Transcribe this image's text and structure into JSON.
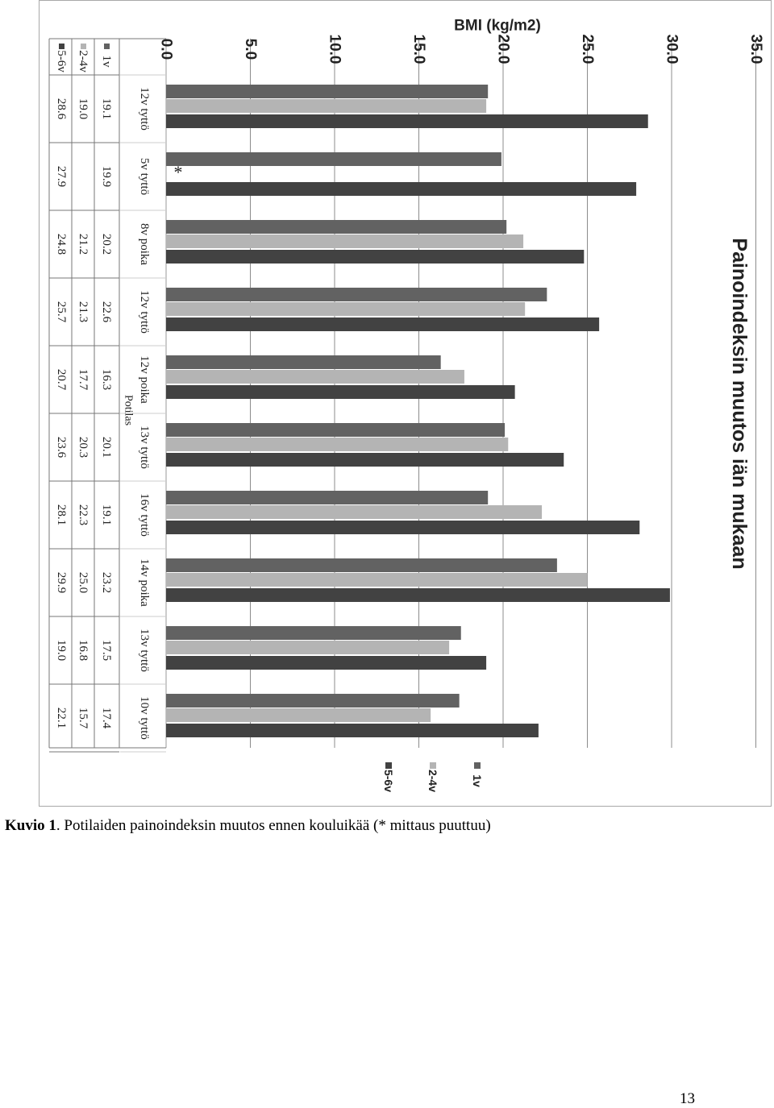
{
  "caption": {
    "label": "Kuvio 1",
    "text": ". Potilaiden painoindeksin muutos ennen kouluikää (* mittaus puuttuu)"
  },
  "page_number": "13",
  "colors": {
    "series_1v": "#626262",
    "series_2_4v": "#b4b4b4",
    "series_5_6v": "#424242",
    "grid": "#8c8c8c",
    "table_line": "#777777",
    "text": "#222222"
  },
  "chart_data": {
    "type": "bar",
    "orientation": "rotated 90 degrees clockwise (page is sideways)",
    "title": "Painoindeksin muutos iän mukaan",
    "ylabel": "BMI (kg/m2)",
    "xlabel": "Potilas",
    "ylim": [
      0,
      35
    ],
    "yticks": [
      "0.0",
      "5.0",
      "10.0",
      "15.0",
      "20.0",
      "25.0",
      "30.0",
      "35.0"
    ],
    "grid": true,
    "legend_position": "right",
    "data_table": true,
    "missing_marker": "*",
    "categories": [
      "12v tyttö",
      "5v tyttö",
      "8v poika",
      "12v tyttö",
      "12v poika",
      "13v tyttö",
      "16v tyttö",
      "14v poika",
      "13v tyttö",
      "10v tyttö"
    ],
    "series": [
      {
        "name": "1v",
        "values": [
          19.1,
          19.9,
          20.2,
          22.6,
          16.3,
          20.1,
          19.1,
          23.2,
          17.5,
          17.4
        ],
        "labels": [
          "19.1",
          "19.9",
          "20.2",
          "22.6",
          "16.3",
          "20.1",
          "19.1",
          "23.2",
          "17.5",
          "17.4"
        ]
      },
      {
        "name": "2-4v",
        "values": [
          19.0,
          null,
          21.2,
          21.3,
          17.7,
          20.3,
          22.3,
          25.0,
          16.8,
          15.7
        ],
        "labels": [
          "19.0",
          "",
          "21.2",
          "21.3",
          "17.7",
          "20.3",
          "22.3",
          "25.0",
          "16.8",
          "15.7"
        ]
      },
      {
        "name": "5-6v",
        "values": [
          28.6,
          27.9,
          24.8,
          25.7,
          20.7,
          23.6,
          28.1,
          29.9,
          19.0,
          22.1
        ],
        "labels": [
          "28.6",
          "27.9",
          "24.8",
          "25.7",
          "20.7",
          "23.6",
          "28.1",
          "29.9",
          "19.0",
          "22.1"
        ]
      }
    ]
  }
}
